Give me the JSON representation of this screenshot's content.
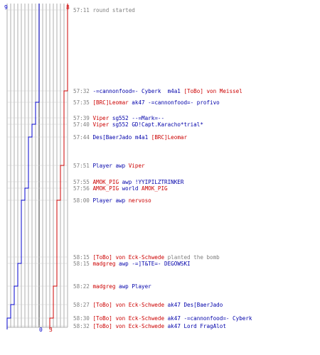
{
  "colors": {
    "ct": "#0000cc",
    "t": "#cc0000",
    "grid": "#999999",
    "text_gray": "#808080",
    "text_blue": "#0000aa",
    "text_red": "#cc0000"
  },
  "scores": {
    "start_ct": "9",
    "start_t": "8",
    "end_ct": "0",
    "end_t": "3"
  },
  "events": [
    {
      "time": "57:11",
      "parts": [
        {
          "text": "round started",
          "c": "gr"
        }
      ]
    },
    {
      "time": "57:32",
      "parts": [
        {
          "text": "-=cannonfood=- Cyberk",
          "c": "bl"
        },
        {
          "text": "  m4a1 ",
          "c": "bl"
        },
        {
          "text": "[ToBo] von Meissel",
          "c": "rd"
        }
      ]
    },
    {
      "time": "57:35",
      "parts": [
        {
          "text": "[BRC]Leomar",
          "c": "rd"
        },
        {
          "text": " ak47 ",
          "c": "bl"
        },
        {
          "text": "-=cannonfood=- profivo",
          "c": "bl"
        }
      ]
    },
    {
      "time": "57:39",
      "parts": [
        {
          "text": "Viper",
          "c": "rd"
        },
        {
          "text": " sg552 ",
          "c": "bl"
        },
        {
          "text": "--=Mark=--",
          "c": "bl"
        }
      ]
    },
    {
      "time": "57:40",
      "parts": [
        {
          "text": "Viper",
          "c": "rd"
        },
        {
          "text": " sg552 ",
          "c": "bl"
        },
        {
          "text": "GD!Capt.Karacho*trial*",
          "c": "bl"
        }
      ]
    },
    {
      "time": "57:44",
      "parts": [
        {
          "text": "Des[BaerJado",
          "c": "bl"
        },
        {
          "text": " m4a1 ",
          "c": "bl"
        },
        {
          "text": "[BRC]Leomar",
          "c": "rd"
        }
      ]
    },
    {
      "time": "57:51",
      "parts": [
        {
          "text": "Player",
          "c": "bl"
        },
        {
          "text": " awp ",
          "c": "bl"
        },
        {
          "text": "Viper",
          "c": "rd"
        }
      ]
    },
    {
      "time": "57:55",
      "parts": [
        {
          "text": "AMOK_PIG",
          "c": "rd"
        },
        {
          "text": " awp ",
          "c": "bl"
        },
        {
          "text": "!YYIPILZTRINKER",
          "c": "bl"
        }
      ]
    },
    {
      "time": "57:56",
      "parts": [
        {
          "text": "AMOK_PIG",
          "c": "rd"
        },
        {
          "text": " world ",
          "c": "bl"
        },
        {
          "text": "AMOK_PIG",
          "c": "rd"
        }
      ]
    },
    {
      "time": "58:00",
      "parts": [
        {
          "text": "Player",
          "c": "bl"
        },
        {
          "text": " awp ",
          "c": "bl"
        },
        {
          "text": "nervoso",
          "c": "rd"
        }
      ]
    },
    {
      "time": "58:15",
      "parts": [
        {
          "text": "[ToBo] von Eck-Schwede",
          "c": "rd"
        },
        {
          "text": " planted the bomb",
          "c": "gr"
        }
      ]
    },
    {
      "time": "58:15",
      "parts": [
        {
          "text": "madgreg",
          "c": "rd"
        },
        {
          "text": " awp ",
          "c": "bl"
        },
        {
          "text": "-=]T&TE=- DEGOWSKI",
          "c": "bl"
        }
      ]
    },
    {
      "time": "58:22",
      "parts": [
        {
          "text": "madgreg",
          "c": "rd"
        },
        {
          "text": " awp ",
          "c": "bl"
        },
        {
          "text": "Player",
          "c": "bl"
        }
      ]
    },
    {
      "time": "58:27",
      "parts": [
        {
          "text": "[ToBo] von Eck-Schwede",
          "c": "rd"
        },
        {
          "text": " ak47 ",
          "c": "bl"
        },
        {
          "text": "Des[BaerJado",
          "c": "bl"
        }
      ]
    },
    {
      "time": "58:30",
      "parts": [
        {
          "text": "[ToBo] von Eck-Schwede",
          "c": "rd"
        },
        {
          "text": " ak47 ",
          "c": "bl"
        },
        {
          "text": "-=cannonfood=- Cyberk",
          "c": "bl"
        }
      ]
    },
    {
      "time": "58:32",
      "parts": [
        {
          "text": "[ToBo] von Eck-Schwede",
          "c": "rd"
        },
        {
          "text": " ak47 ",
          "c": "bl"
        },
        {
          "text": "Lord FragAlot",
          "c": "bl"
        }
      ]
    }
  ],
  "ct_path": [
    9,
    9,
    8,
    8,
    7,
    6,
    6,
    6,
    5,
    4,
    4,
    3,
    2,
    1,
    0,
    0
  ],
  "t_path": [
    8,
    7,
    7,
    7,
    7,
    7,
    6,
    6,
    6,
    5,
    5,
    5,
    4,
    4,
    3,
    3
  ]
}
